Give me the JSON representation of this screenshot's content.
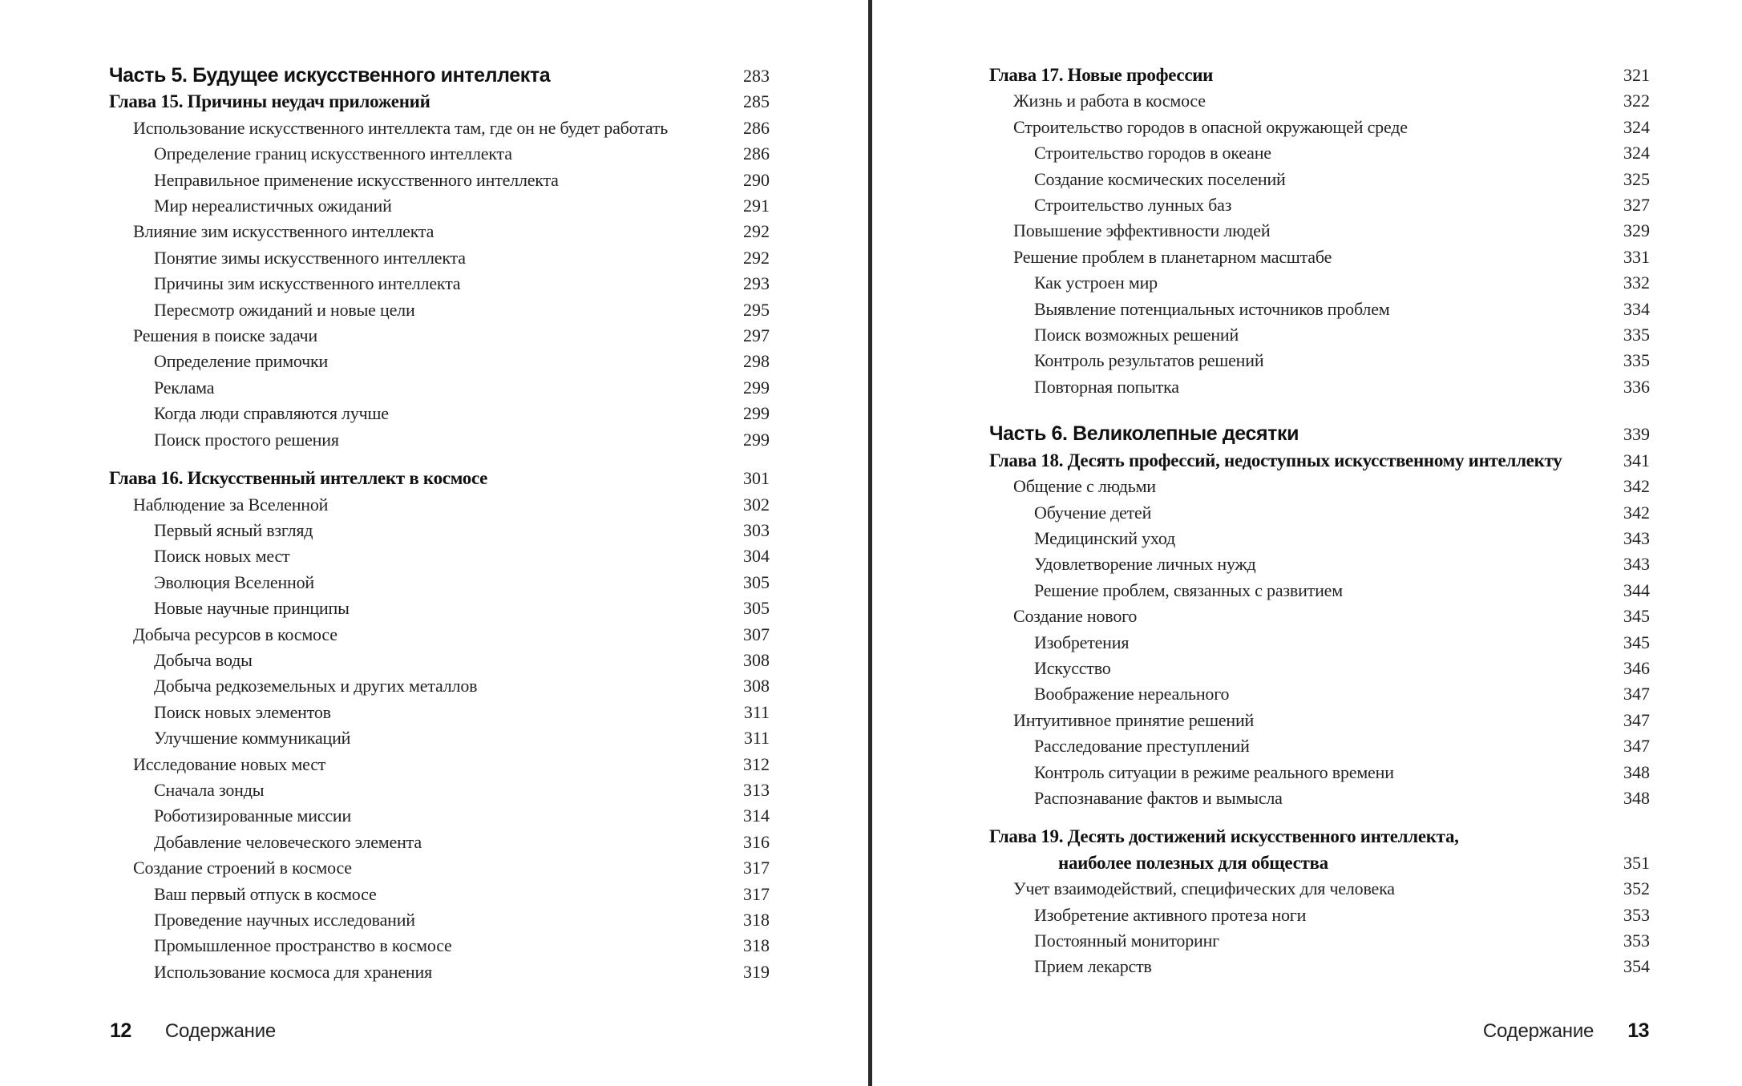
{
  "divider_color": "#2a2a2a",
  "pages": [
    {
      "footer": {
        "page_number": "12",
        "label": "Содержание"
      },
      "entries": [
        {
          "type": "part",
          "text": "Часть 5. Будущее искусственного интеллекта",
          "page": "283"
        },
        {
          "type": "chapter",
          "text": "Глава 15. Причины неудач приложений",
          "page": "285"
        },
        {
          "type": "l1",
          "text": "Использование искусственного интеллекта там, где он не будет работать",
          "page": "286"
        },
        {
          "type": "l2",
          "text": "Определение границ искусственного интеллекта",
          "page": "286"
        },
        {
          "type": "l2",
          "text": "Неправильное применение искусственного интеллекта",
          "page": "290"
        },
        {
          "type": "l2",
          "text": "Мир нереалистичных ожиданий",
          "page": "291"
        },
        {
          "type": "l1",
          "text": "Влияние зим искусственного интеллекта",
          "page": "292"
        },
        {
          "type": "l2",
          "text": "Понятие зимы искусственного интеллекта",
          "page": "292"
        },
        {
          "type": "l2",
          "text": "Причины зим искусственного интеллекта",
          "page": "293"
        },
        {
          "type": "l2",
          "text": "Пересмотр ожиданий и новые цели",
          "page": "295"
        },
        {
          "type": "l1",
          "text": "Решения в поиске задачи",
          "page": "297"
        },
        {
          "type": "l2",
          "text": "Определение примочки",
          "page": "298"
        },
        {
          "type": "l2",
          "text": "Реклама",
          "page": "299"
        },
        {
          "type": "l2",
          "text": "Когда люди справляются лучше",
          "page": "299"
        },
        {
          "type": "l2",
          "text": "Поиск простого решения",
          "page": "299"
        },
        {
          "type": "chapter",
          "gap": "sm",
          "text": "Глава 16. Искусственный интеллект в космосе",
          "page": "301"
        },
        {
          "type": "l1",
          "text": "Наблюдение за Вселенной",
          "page": "302"
        },
        {
          "type": "l2",
          "text": "Первый ясный взгляд",
          "page": "303"
        },
        {
          "type": "l2",
          "text": "Поиск новых мест",
          "page": "304"
        },
        {
          "type": "l2",
          "text": "Эволюция Вселенной",
          "page": "305"
        },
        {
          "type": "l2",
          "text": "Новые научные принципы",
          "page": "305"
        },
        {
          "type": "l1",
          "text": "Добыча ресурсов в космосе",
          "page": "307"
        },
        {
          "type": "l2",
          "text": "Добыча воды",
          "page": "308"
        },
        {
          "type": "l2",
          "text": "Добыча редкоземельных и других металлов",
          "page": "308"
        },
        {
          "type": "l2",
          "text": "Поиск новых элементов",
          "page": "311"
        },
        {
          "type": "l2",
          "text": "Улучшение коммуникаций",
          "page": "311"
        },
        {
          "type": "l1",
          "text": "Исследование новых мест",
          "page": "312"
        },
        {
          "type": "l2",
          "text": "Сначала зонды",
          "page": "313"
        },
        {
          "type": "l2",
          "text": "Роботизированные миссии",
          "page": "314"
        },
        {
          "type": "l2",
          "text": "Добавление человеческого элемента",
          "page": "316"
        },
        {
          "type": "l1",
          "text": "Создание строений в космосе",
          "page": "317"
        },
        {
          "type": "l2",
          "text": "Ваш первый отпуск в космосе",
          "page": "317"
        },
        {
          "type": "l2",
          "text": "Проведение научных исследований",
          "page": "318"
        },
        {
          "type": "l2",
          "text": "Промышленное пространство в космосе",
          "page": "318"
        },
        {
          "type": "l2",
          "text": "Использование космоса для хранения",
          "page": "319"
        }
      ]
    },
    {
      "footer": {
        "page_number": "13",
        "label": "Содержание"
      },
      "entries": [
        {
          "type": "chapter",
          "text": "Глава 17. Новые профессии",
          "page": "321"
        },
        {
          "type": "l1",
          "text": "Жизнь и работа в космосе",
          "page": "322"
        },
        {
          "type": "l1",
          "text": "Строительство городов в опасной окружающей среде",
          "page": "324"
        },
        {
          "type": "l2",
          "text": "Строительство городов в океане",
          "page": "324"
        },
        {
          "type": "l2",
          "text": "Создание космических поселений",
          "page": "325"
        },
        {
          "type": "l2",
          "text": "Строительство лунных баз",
          "page": "327"
        },
        {
          "type": "l1",
          "text": "Повышение эффективности людей",
          "page": "329"
        },
        {
          "type": "l1",
          "text": "Решение проблем в планетарном масштабе",
          "page": "331"
        },
        {
          "type": "l2",
          "text": "Как устроен мир",
          "page": "332"
        },
        {
          "type": "l2",
          "text": "Выявление потенциальных источников проблем",
          "page": "334"
        },
        {
          "type": "l2",
          "text": "Поиск возможных решений",
          "page": "335"
        },
        {
          "type": "l2",
          "text": "Контроль результатов решений",
          "page": "335"
        },
        {
          "type": "l2",
          "text": "Повторная попытка",
          "page": "336"
        },
        {
          "type": "part",
          "gap": "md",
          "text": "Часть 6. Великолепные десятки",
          "page": "339"
        },
        {
          "type": "chapter",
          "text": "Глава 18. Десять профессий, недоступных искусственному интеллекту",
          "page": "341"
        },
        {
          "type": "l1",
          "text": "Общение с людьми",
          "page": "342"
        },
        {
          "type": "l2",
          "text": "Обучение детей",
          "page": "342"
        },
        {
          "type": "l2",
          "text": "Медицинский уход",
          "page": "343"
        },
        {
          "type": "l2",
          "text": "Удовлетворение личных нужд",
          "page": "343"
        },
        {
          "type": "l2",
          "text": "Решение проблем, связанных с развитием",
          "page": "344"
        },
        {
          "type": "l1",
          "text": "Создание нового",
          "page": "345"
        },
        {
          "type": "l2",
          "text": "Изобретения",
          "page": "345"
        },
        {
          "type": "l2",
          "text": "Искусство",
          "page": "346"
        },
        {
          "type": "l2",
          "text": "Воображение нереального",
          "page": "347"
        },
        {
          "type": "l1",
          "text": "Интуитивное принятие решений",
          "page": "347"
        },
        {
          "type": "l2",
          "text": "Расследование преступлений",
          "page": "347"
        },
        {
          "type": "l2",
          "text": "Контроль ситуации в режиме реального времени",
          "page": "348"
        },
        {
          "type": "l2",
          "text": "Распознавание фактов и вымысла",
          "page": "348"
        },
        {
          "type": "chapter",
          "gap": "sm",
          "text": "Глава 19. Десять достижений искусственного интеллекта,",
          "text2": "наиболее полезных для общества",
          "page": "351"
        },
        {
          "type": "l1",
          "text": "Учет взаимодействий, специфических для человека",
          "page": "352"
        },
        {
          "type": "l2",
          "text": "Изобретение активного протеза ноги",
          "page": "353"
        },
        {
          "type": "l2",
          "text": "Постоянный мониторинг",
          "page": "353"
        },
        {
          "type": "l2",
          "text": "Прием лекарств",
          "page": "354"
        }
      ]
    }
  ]
}
